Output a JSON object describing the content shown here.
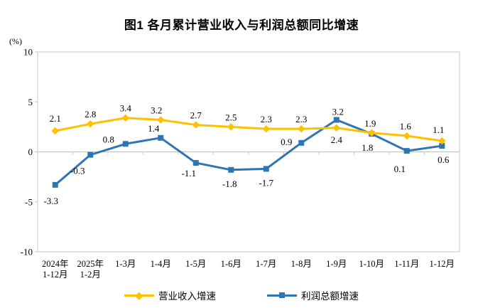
{
  "chart_data": {
    "type": "line",
    "title": "图1 各月累计营业收入与利润总额同比增速",
    "unit_label": "(%)",
    "categories": [
      [
        "2024年",
        "1-12月"
      ],
      [
        "2025年",
        "1-2月"
      ],
      [
        "1-3月"
      ],
      [
        "1-4月"
      ],
      [
        "1-5月"
      ],
      [
        "1-6月"
      ],
      [
        "1-7月"
      ],
      [
        "1-8月"
      ],
      [
        "1-9月"
      ],
      [
        "1-10月"
      ],
      [
        "1-11月"
      ],
      [
        "1-12月"
      ]
    ],
    "ylim": [
      -10,
      10
    ],
    "yticks": [
      10,
      5,
      0,
      -5,
      -10
    ],
    "grid": "zero-line-only",
    "legend_position": "bottom",
    "axis_color": "#C9C9C9",
    "zero_line_color": "#BFBFBF",
    "label_color": "#000000",
    "series": [
      {
        "name": "营业收入增速",
        "color": "#FFC000",
        "marker": "diamond",
        "values": [
          2.1,
          2.8,
          3.4,
          3.2,
          2.7,
          2.5,
          2.3,
          2.3,
          2.4,
          1.9,
          1.6,
          1.1
        ],
        "label_pos": [
          "above",
          "above",
          "above",
          "above",
          "above",
          "above",
          "above",
          "above",
          "below",
          "above",
          "above",
          "above"
        ],
        "label_dx": [
          0,
          0,
          0,
          -6,
          0,
          0,
          0,
          0,
          0,
          -2,
          -2,
          -5
        ],
        "label_dy": [
          -4,
          0,
          0,
          0,
          0,
          0,
          0,
          0,
          -3,
          0,
          0,
          -2
        ]
      },
      {
        "name": "利润总额增速",
        "color": "#2E75B6",
        "marker": "square",
        "values": [
          -3.3,
          -0.3,
          0.8,
          1.4,
          -1.1,
          -1.8,
          -1.7,
          0.9,
          3.2,
          1.8,
          0.1,
          0.6
        ],
        "label_pos": [
          "below",
          "below",
          "above",
          "above",
          "below",
          "below",
          "below",
          "above",
          "above",
          "below",
          "below",
          "below"
        ],
        "label_dx": [
          -6,
          -18,
          -24,
          -10,
          -10,
          -2,
          0,
          -21,
          2,
          -6,
          -10,
          2
        ],
        "label_dy": [
          3,
          3,
          7,
          0,
          -5,
          0,
          0,
          12,
          2,
          0,
          6,
          0
        ]
      }
    ]
  }
}
